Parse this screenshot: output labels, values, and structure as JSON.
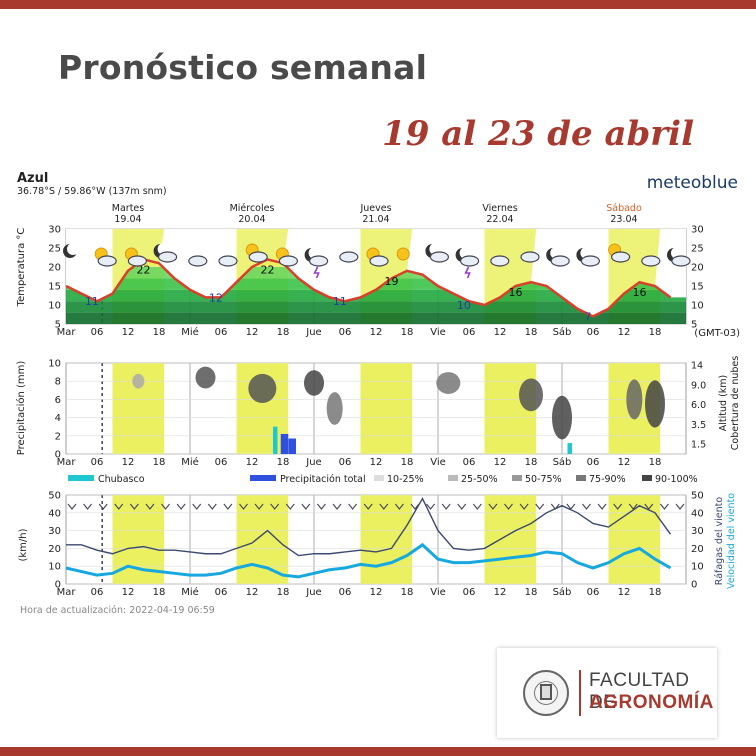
{
  "page": {
    "title": "Pronóstico semanal",
    "subtitle": "19 al 23 de abril"
  },
  "meteogram": {
    "brand": "meteoblue",
    "location": "Azul",
    "coords": "36.78°S / 59.86°W (137m snm)",
    "timezone": "(GMT-03)",
    "days": [
      {
        "name": "Martes",
        "date": "19.04",
        "highlight": false
      },
      {
        "name": "Miércoles",
        "date": "20.04",
        "highlight": false
      },
      {
        "name": "Jueves",
        "date": "21.04",
        "highlight": false
      },
      {
        "name": "Viernes",
        "date": "22.04",
        "highlight": false
      },
      {
        "name": "Sábado",
        "date": "23.04",
        "highlight": true
      }
    ],
    "x_ticks": [
      "Mar",
      "06",
      "12",
      "18",
      "Mié",
      "06",
      "12",
      "18",
      "Jue",
      "06",
      "12",
      "18",
      "Vie",
      "06",
      "12",
      "18",
      "Sáb",
      "06",
      "12",
      "18"
    ],
    "update_text": "Hora de actualización: 2022-04-19 06:59",
    "colors": {
      "day_band": "#eaf060",
      "temp_line": "#d8402a",
      "temp_fill_high": "#2fb83a",
      "temp_fill_low": "#1a8a3a",
      "gust_line": "#3b4a6e",
      "wind_line": "#18a8e0",
      "convective": "#1fc8d0",
      "total_precip": "#3050e0"
    }
  },
  "chart_data": [
    {
      "type": "line",
      "panel": "temperature",
      "ylabel": "Temperatura °C",
      "ylim": [
        5,
        30
      ],
      "yticks": [
        5,
        10,
        15,
        20,
        25,
        30
      ],
      "hours": [
        0,
        3,
        6,
        9,
        12,
        15,
        18,
        21,
        24,
        27,
        30,
        33,
        36,
        39,
        42,
        45,
        48,
        51,
        54,
        57,
        60,
        63,
        66,
        69,
        72,
        75,
        78,
        81,
        84,
        87,
        90,
        93,
        96,
        99,
        102,
        105,
        108,
        111,
        114,
        117
      ],
      "temperature": [
        15,
        13,
        11,
        13,
        19,
        22,
        21,
        17,
        14,
        12,
        12,
        16,
        20,
        22,
        21,
        17,
        14,
        12,
        11,
        12,
        14,
        17,
        19,
        18,
        15,
        13,
        11,
        10,
        12,
        15,
        16,
        15,
        12,
        9,
        7,
        9,
        13,
        16,
        15,
        12
      ],
      "labels": [
        {
          "text": "11",
          "kind": "min"
        },
        {
          "text": "22",
          "kind": "max"
        },
        {
          "text": "12",
          "kind": "min"
        },
        {
          "text": "22",
          "kind": "max"
        },
        {
          "text": "11",
          "kind": "min"
        },
        {
          "text": "19",
          "kind": "max"
        },
        {
          "text": "10",
          "kind": "min"
        },
        {
          "text": "16",
          "kind": "max"
        },
        {
          "text": "7",
          "kind": "min"
        },
        {
          "text": "16",
          "kind": "max"
        }
      ],
      "icons": [
        "moon-icon",
        "sun-cloud-icon",
        "sun-cloud-icon",
        "cloud-moon-icon",
        "cloud-icon",
        "cloud-icon",
        "sun-cloud-icon",
        "sun-cloud-icon",
        "moon-rain-icon",
        "cloud-icon",
        "sun-cloud-icon",
        "sun-icon",
        "cloud-moon-icon",
        "moon-rain-icon",
        "cloud-icon",
        "cloud-icon",
        "cloud-moon-icon",
        "cloud-moon-icon",
        "sun-cloud-icon",
        "cloud-icon",
        "cloud-moon-icon"
      ]
    },
    {
      "type": "bar",
      "panel": "precipitation",
      "ylabel": "Precipitación (mm)",
      "ylabel_right": "Altitud (km)",
      "ylabel_right2": "Cobertura de nubes",
      "ylim": [
        0,
        10
      ],
      "yticks": [
        0,
        2,
        4,
        6,
        8,
        10
      ],
      "yticks_right": [
        "1.5",
        "3.5",
        "6.0",
        "9.0",
        "14"
      ],
      "legend": [
        "Chubasco",
        "Precipitación total",
        "10-25%",
        "25-50%",
        "50-75%",
        "75-90%",
        "90-100%"
      ],
      "hours": [
        40.5,
        42,
        43.5,
        97.5
      ],
      "convective": [
        3,
        0,
        0,
        1.2
      ],
      "total": [
        0,
        2.2,
        1.7,
        0
      ]
    },
    {
      "type": "line",
      "panel": "wind",
      "ylabel": "(km/h)",
      "ylabel_right": "Ráfagas del viento",
      "ylabel_right2": "Velocidad del viento",
      "ylim": [
        0,
        50
      ],
      "yticks": [
        0,
        10,
        20,
        30,
        40,
        50
      ],
      "hours": [
        0,
        3,
        6,
        9,
        12,
        15,
        18,
        21,
        24,
        27,
        30,
        33,
        36,
        39,
        42,
        45,
        48,
        51,
        54,
        57,
        60,
        63,
        66,
        69,
        72,
        75,
        78,
        81,
        84,
        87,
        90,
        93,
        96,
        99,
        102,
        105,
        108,
        111,
        114,
        117
      ],
      "gusts": [
        22,
        22,
        19,
        17,
        20,
        21,
        19,
        19,
        18,
        17,
        17,
        20,
        23,
        30,
        22,
        16,
        17,
        17,
        18,
        19,
        18,
        20,
        33,
        48,
        30,
        20,
        19,
        20,
        25,
        30,
        34,
        40,
        44,
        40,
        34,
        32,
        38,
        44,
        40,
        28
      ],
      "wind": [
        9,
        7,
        5,
        6,
        10,
        8,
        7,
        6,
        5,
        5,
        6,
        9,
        11,
        9,
        5,
        4,
        6,
        8,
        9,
        11,
        10,
        12,
        16,
        22,
        14,
        12,
        12,
        13,
        14,
        15,
        16,
        18,
        17,
        12,
        9,
        12,
        17,
        20,
        14,
        9
      ]
    }
  ]
}
